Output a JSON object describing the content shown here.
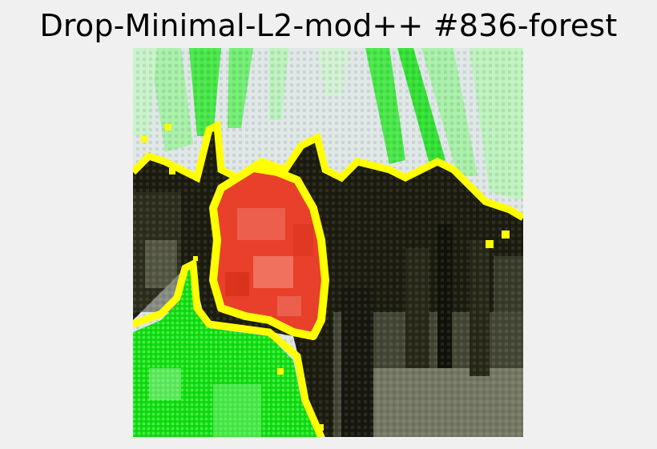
{
  "figure": {
    "title": "Drop-Minimal-L2-mod++ #836-forest"
  },
  "image": {
    "subject": "forest scene with segmentation overlay",
    "colors": {
      "sky": "#dfe7e7",
      "dark_trees": "#1c1c10",
      "ground": "#8a8f78",
      "green_overlay": "#12e012",
      "yellow_boundary": "#ffff00",
      "red_region": "#e8402a"
    }
  }
}
